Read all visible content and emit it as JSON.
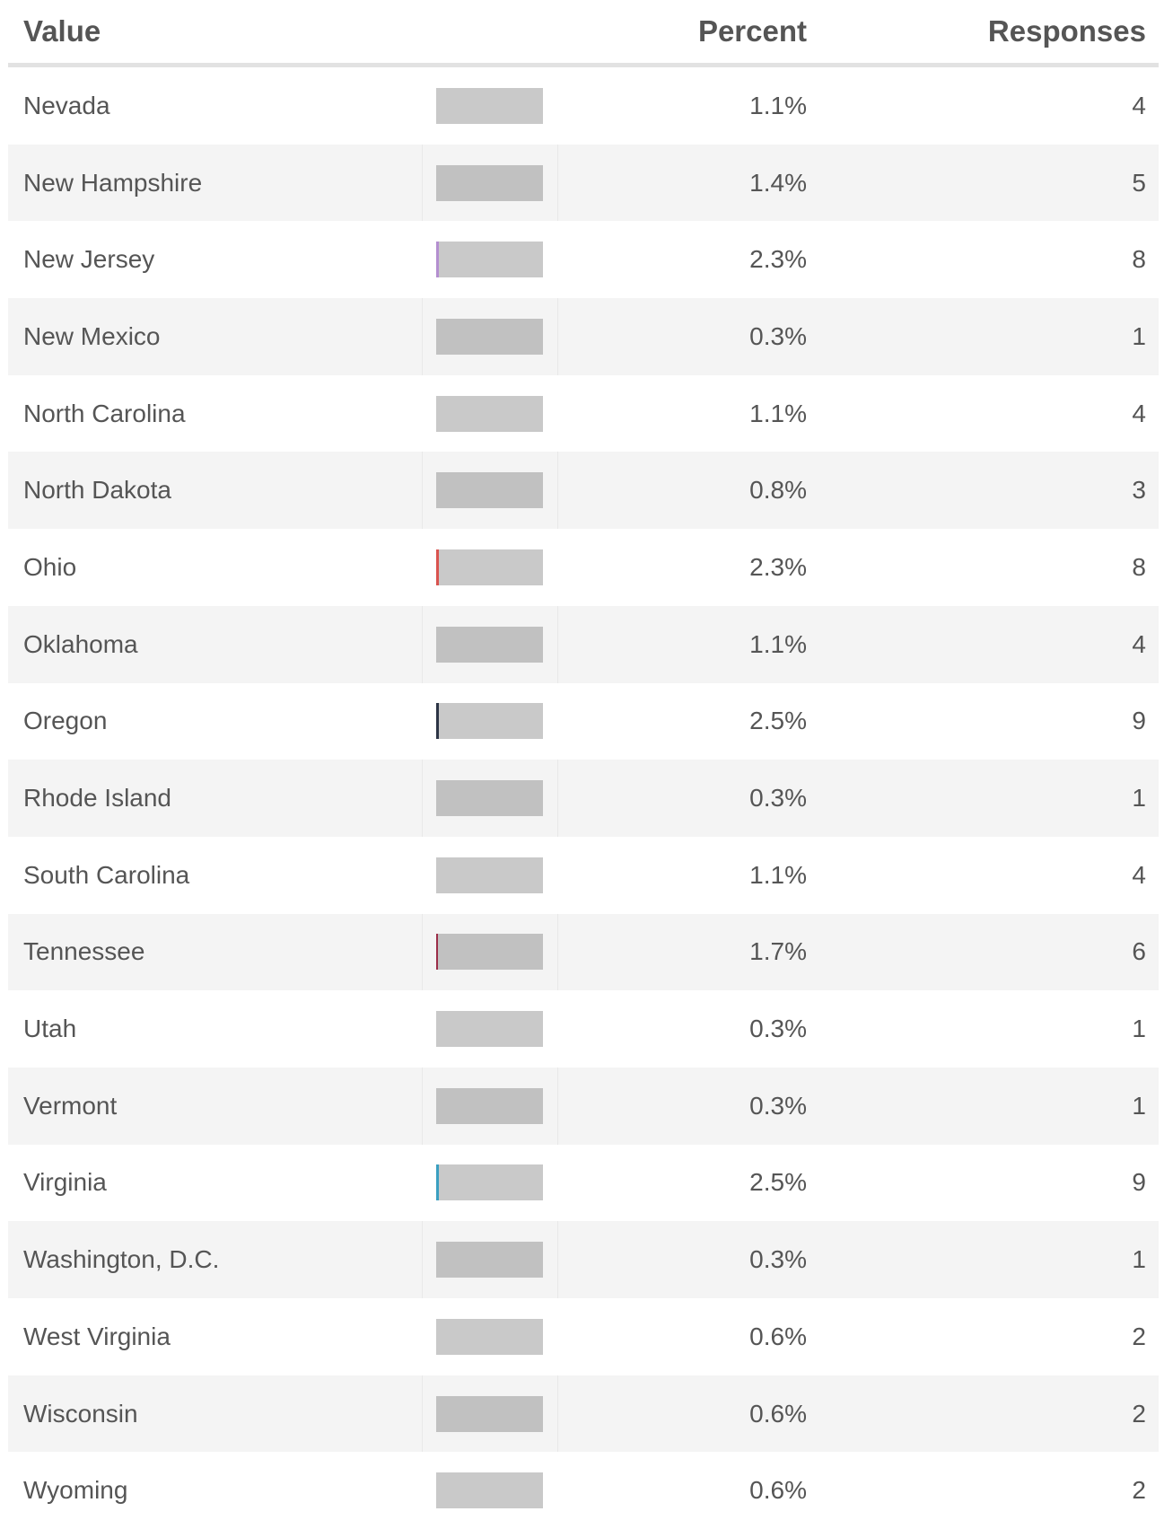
{
  "table": {
    "header": [
      "Value",
      "Percent",
      "Responses"
    ],
    "rows": [
      {
        "value": "Nevada",
        "percent": 1.1,
        "percent_label": "1.1%",
        "responses": 4
      },
      {
        "value": "New Hampshire",
        "percent": 1.4,
        "percent_label": "1.4%",
        "responses": 5
      },
      {
        "value": "New Jersey",
        "percent": 2.3,
        "percent_label": "2.3%",
        "responses": 8,
        "color": "#b48fd0"
      },
      {
        "value": "New Mexico",
        "percent": 0.3,
        "percent_label": "0.3%",
        "responses": 1
      },
      {
        "value": "North Carolina",
        "percent": 1.1,
        "percent_label": "1.1%",
        "responses": 4
      },
      {
        "value": "North Dakota",
        "percent": 0.8,
        "percent_label": "0.8%",
        "responses": 3
      },
      {
        "value": "Ohio",
        "percent": 2.3,
        "percent_label": "2.3%",
        "responses": 8,
        "color": "#d9534f"
      },
      {
        "value": "Oklahoma",
        "percent": 1.1,
        "percent_label": "1.1%",
        "responses": 4
      },
      {
        "value": "Oregon",
        "percent": 2.5,
        "percent_label": "2.5%",
        "responses": 9,
        "color": "#2c3445"
      },
      {
        "value": "Rhode Island",
        "percent": 0.3,
        "percent_label": "0.3%",
        "responses": 1
      },
      {
        "value": "South Carolina",
        "percent": 1.1,
        "percent_label": "1.1%",
        "responses": 4
      },
      {
        "value": "Tennessee",
        "percent": 1.7,
        "percent_label": "1.7%",
        "responses": 6,
        "color": "#9b2d48"
      },
      {
        "value": "Utah",
        "percent": 0.3,
        "percent_label": "0.3%",
        "responses": 1
      },
      {
        "value": "Vermont",
        "percent": 0.3,
        "percent_label": "0.3%",
        "responses": 1
      },
      {
        "value": "Virginia",
        "percent": 2.5,
        "percent_label": "2.5%",
        "responses": 9,
        "color": "#3a9fc0"
      },
      {
        "value": "Washington, D.C.",
        "percent": 0.3,
        "percent_label": "0.3%",
        "responses": 1
      },
      {
        "value": "West Virginia",
        "percent": 0.6,
        "percent_label": "0.6%",
        "responses": 2
      },
      {
        "value": "Wisconsin",
        "percent": 0.6,
        "percent_label": "0.6%",
        "responses": 2
      },
      {
        "value": "Wyoming",
        "percent": 0.6,
        "percent_label": "0.6%",
        "responses": 2
      }
    ]
  }
}
